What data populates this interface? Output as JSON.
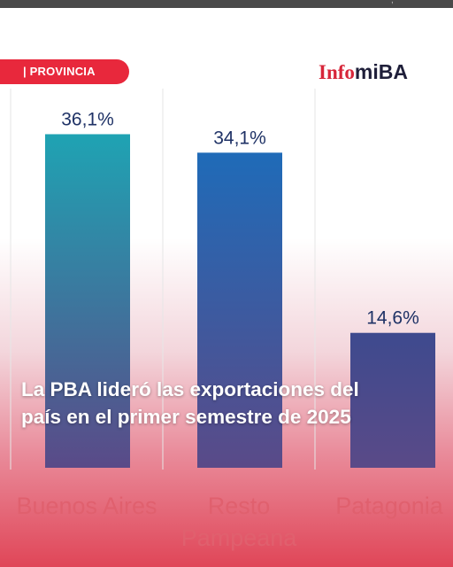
{
  "brand": {
    "part1": "Info",
    "part2": "miBA"
  },
  "section_tag": "| PROVINCIA",
  "headline": {
    "line1": "La PBA lideró las exportaciones del",
    "line2": "país en el primer semestre de 2025"
  },
  "colors": {
    "accent": "#e8283c",
    "bar1": "#1fa3b3",
    "bar2": "#1f6bb8",
    "bar3": "#3e4a8e"
  },
  "chart_data": {
    "type": "bar",
    "categories": [
      "Buenos Aires",
      "Resto Pampeana",
      "Patagonia"
    ],
    "category_lines": [
      [
        "Buenos Aires"
      ],
      [
        "Resto",
        "Pampeana"
      ],
      [
        "Patagonia"
      ]
    ],
    "values": [
      36.1,
      34.1,
      14.6
    ],
    "value_labels": [
      "36,1%",
      "34,1%",
      "14,6%"
    ],
    "unit": "%",
    "ylim": [
      0,
      40
    ],
    "grid": false
  }
}
